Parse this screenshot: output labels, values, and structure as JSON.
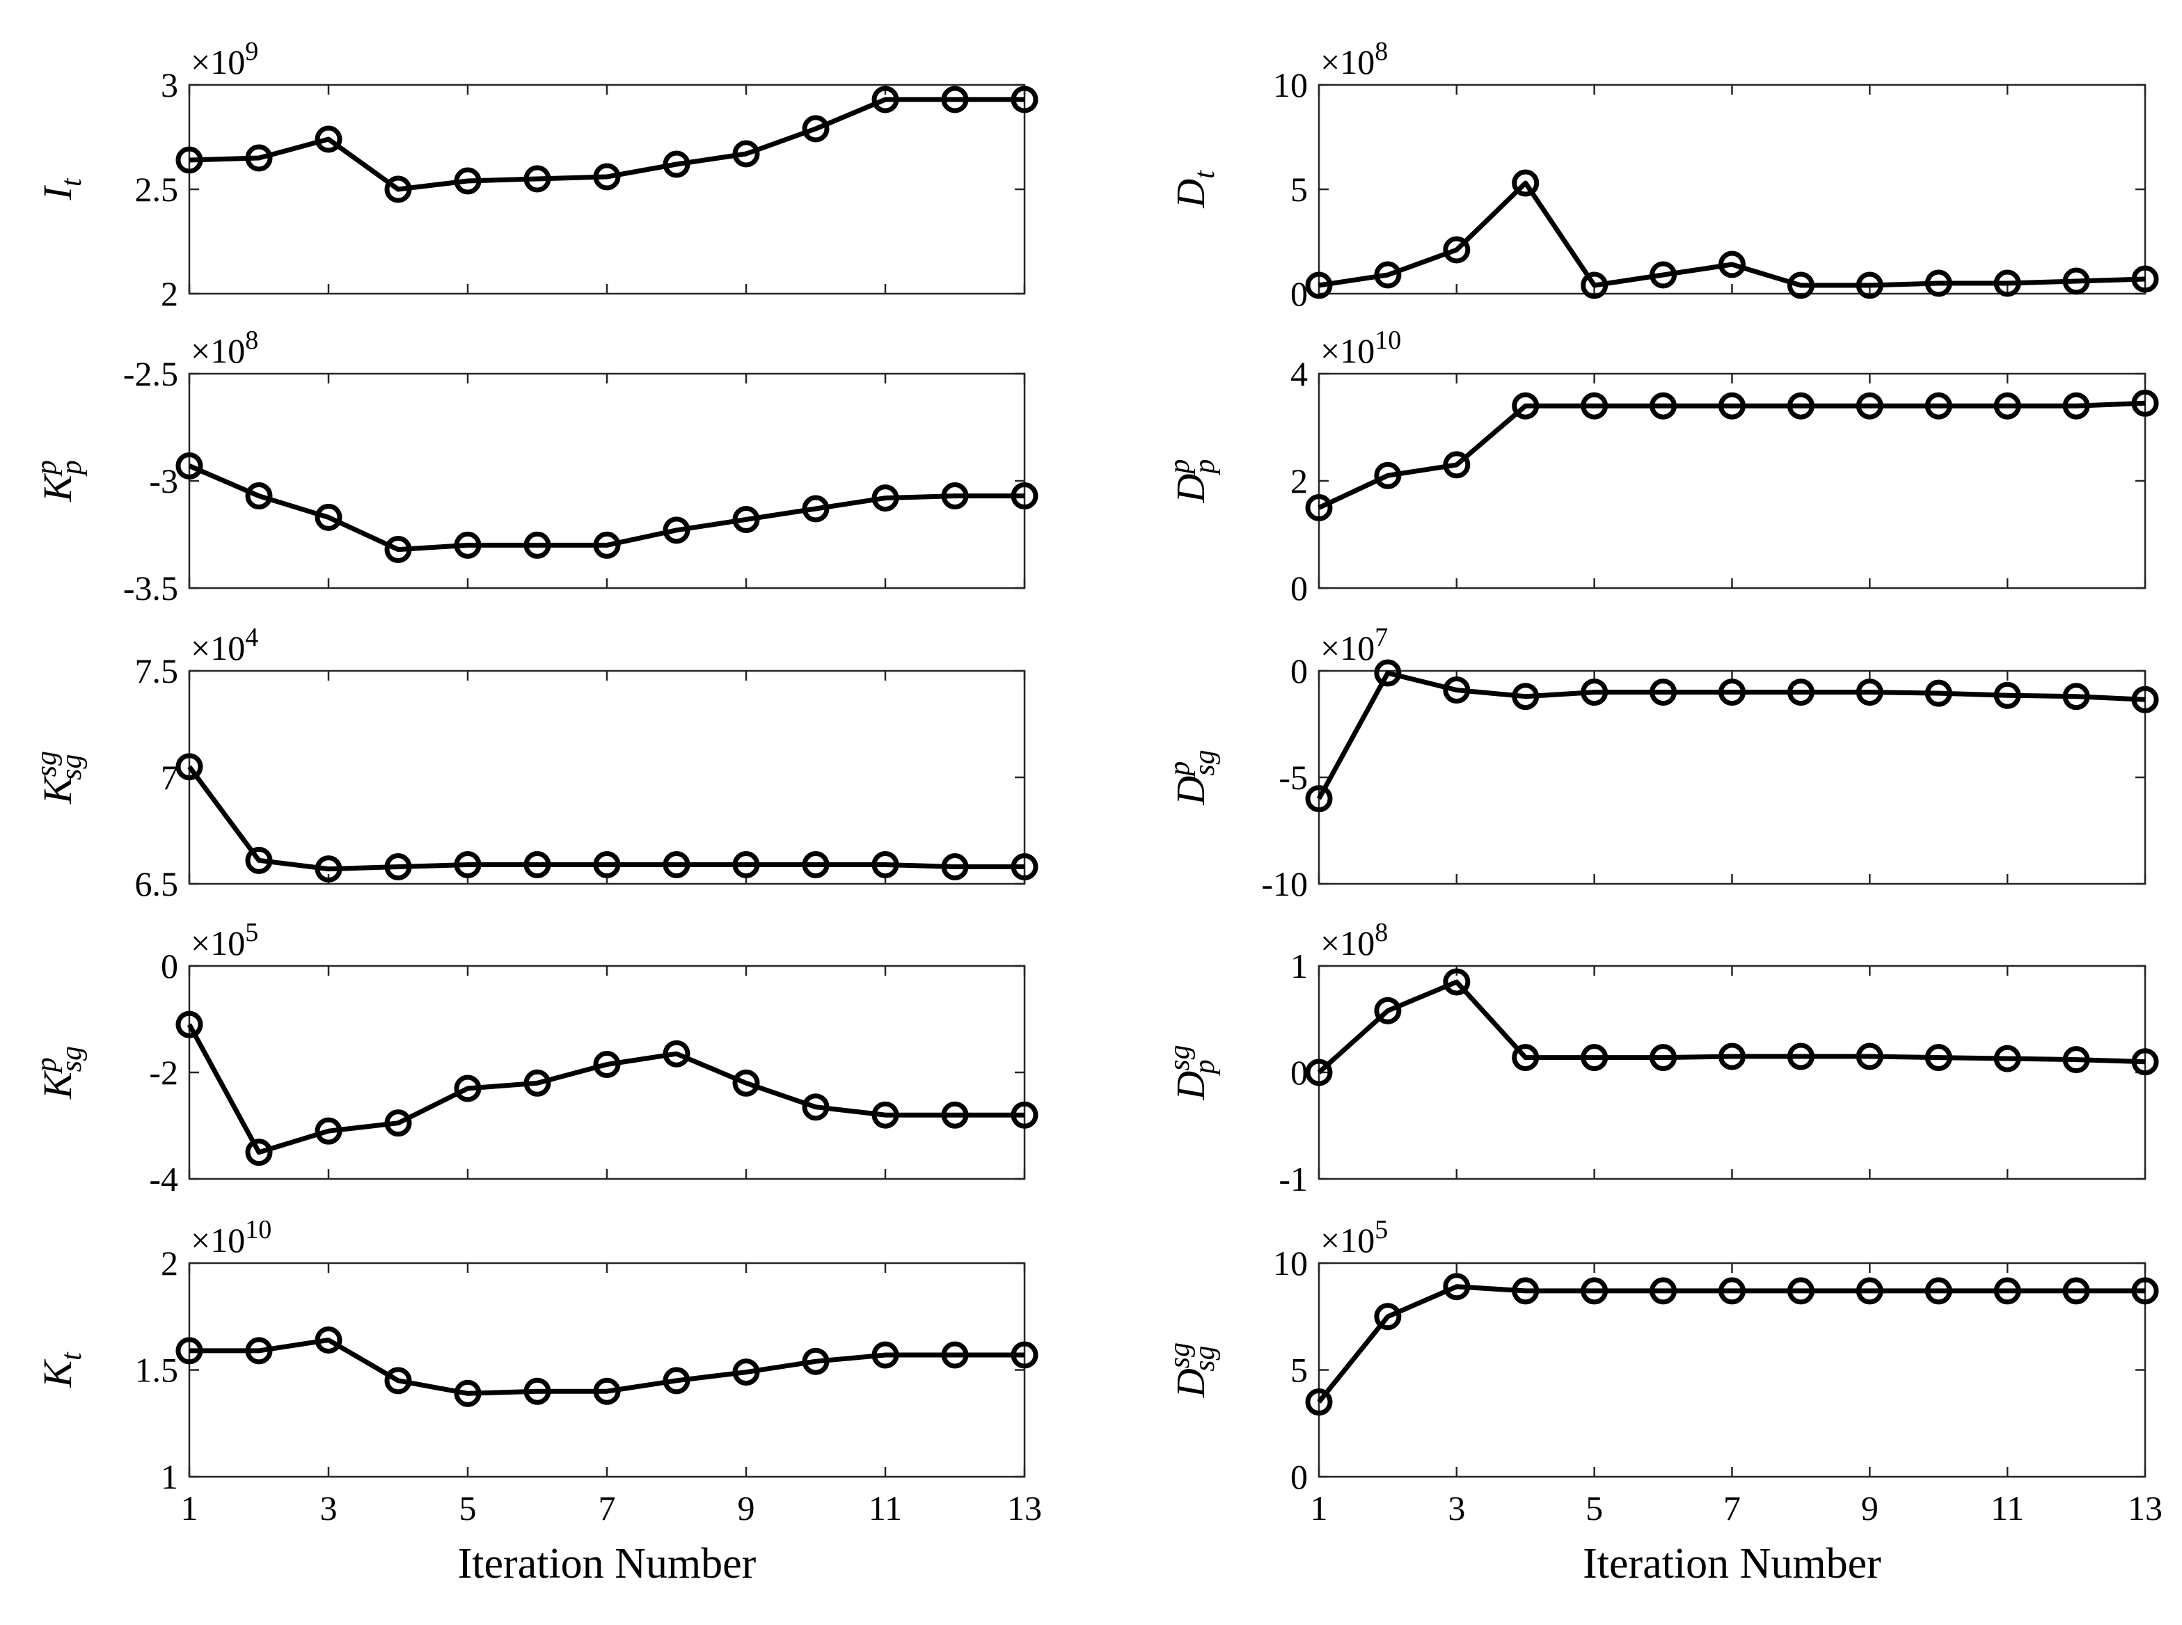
{
  "chart_data": [
    {
      "type": "line",
      "ylabel_base": "I",
      "ylabel_sub": "t",
      "ylabel_sup": "",
      "exponent_text": "×10",
      "exponent_power": "9",
      "x": [
        1,
        2,
        3,
        4,
        5,
        6,
        7,
        8,
        9,
        10,
        11,
        12,
        13
      ],
      "values": [
        2.64,
        2.65,
        2.74,
        2.5,
        2.54,
        2.55,
        2.56,
        2.62,
        2.67,
        2.79,
        2.93,
        2.93,
        2.93
      ],
      "ylim": [
        2,
        3
      ],
      "yticks": [
        2,
        2.5,
        3
      ],
      "ytick_labels": [
        "2",
        "2.5",
        "3"
      ],
      "xlim": [
        1,
        13
      ],
      "xticks": [
        1,
        3,
        5,
        7,
        9,
        11,
        13
      ],
      "xtick_labels": [],
      "xlabel": ""
    },
    {
      "type": "line",
      "ylabel_base": "D",
      "ylabel_sub": "t",
      "ylabel_sup": "",
      "exponent_text": "×10",
      "exponent_power": "8",
      "x": [
        1,
        2,
        3,
        4,
        5,
        6,
        7,
        8,
        9,
        10,
        11,
        12,
        13
      ],
      "values": [
        0.4,
        0.9,
        2.1,
        5.3,
        0.4,
        0.9,
        1.4,
        0.4,
        0.4,
        0.5,
        0.5,
        0.6,
        0.7
      ],
      "ylim": [
        0,
        10
      ],
      "yticks": [
        0,
        5,
        10
      ],
      "ytick_labels": [
        "0",
        "5",
        "10"
      ],
      "xlim": [
        1,
        13
      ],
      "xticks": [
        1,
        3,
        5,
        7,
        9,
        11,
        13
      ],
      "xtick_labels": [],
      "xlabel": ""
    },
    {
      "type": "line",
      "ylabel_base": "K",
      "ylabel_sub": "p",
      "ylabel_sup": "p",
      "exponent_text": "×10",
      "exponent_power": "8",
      "x": [
        1,
        2,
        3,
        4,
        5,
        6,
        7,
        8,
        9,
        10,
        11,
        12,
        13
      ],
      "values": [
        -2.93,
        -3.07,
        -3.17,
        -3.32,
        -3.3,
        -3.3,
        -3.3,
        -3.23,
        -3.18,
        -3.13,
        -3.08,
        -3.07,
        -3.07
      ],
      "ylim": [
        -3.5,
        -2.5
      ],
      "yticks": [
        -3.5,
        -3,
        -2.5
      ],
      "ytick_labels": [
        "-3.5",
        "-3",
        "-2.5"
      ],
      "xlim": [
        1,
        13
      ],
      "xticks": [
        1,
        3,
        5,
        7,
        9,
        11,
        13
      ],
      "xtick_labels": [],
      "xlabel": ""
    },
    {
      "type": "line",
      "ylabel_base": "D",
      "ylabel_sub": "p",
      "ylabel_sup": "p",
      "exponent_text": "×10",
      "exponent_power": "10",
      "x": [
        1,
        2,
        3,
        4,
        5,
        6,
        7,
        8,
        9,
        10,
        11,
        12,
        13
      ],
      "values": [
        1.5,
        2.1,
        2.3,
        3.4,
        3.4,
        3.4,
        3.4,
        3.4,
        3.4,
        3.4,
        3.4,
        3.4,
        3.45
      ],
      "ylim": [
        0,
        4
      ],
      "yticks": [
        0,
        2,
        4
      ],
      "ytick_labels": [
        "0",
        "2",
        "4"
      ],
      "xlim": [
        1,
        13
      ],
      "xticks": [
        1,
        3,
        5,
        7,
        9,
        11,
        13
      ],
      "xtick_labels": [],
      "xlabel": ""
    },
    {
      "type": "line",
      "ylabel_base": "K",
      "ylabel_sub": "sg",
      "ylabel_sup": "sg",
      "exponent_text": "×10",
      "exponent_power": "4",
      "x": [
        1,
        2,
        3,
        4,
        5,
        6,
        7,
        8,
        9,
        10,
        11,
        12,
        13
      ],
      "values": [
        7.05,
        6.61,
        6.57,
        6.58,
        6.59,
        6.59,
        6.59,
        6.59,
        6.59,
        6.59,
        6.59,
        6.58,
        6.58
      ],
      "ylim": [
        6.5,
        7.5
      ],
      "yticks": [
        6.5,
        7,
        7.5
      ],
      "ytick_labels": [
        "6.5",
        "7",
        "7.5"
      ],
      "xlim": [
        1,
        13
      ],
      "xticks": [
        1,
        3,
        5,
        7,
        9,
        11,
        13
      ],
      "xtick_labels": [],
      "xlabel": ""
    },
    {
      "type": "line",
      "ylabel_base": "D",
      "ylabel_sub": "sg",
      "ylabel_sup": "p",
      "exponent_text": "×10",
      "exponent_power": "7",
      "x": [
        1,
        2,
        3,
        4,
        5,
        6,
        7,
        8,
        9,
        10,
        11,
        12,
        13
      ],
      "values": [
        -6.0,
        -0.1,
        -0.9,
        -1.2,
        -1.0,
        -1.0,
        -1.0,
        -1.0,
        -1.0,
        -1.05,
        -1.15,
        -1.2,
        -1.35
      ],
      "ylim": [
        -10,
        0
      ],
      "yticks": [
        -10,
        -5,
        0
      ],
      "ytick_labels": [
        "-10",
        "-5",
        "0"
      ],
      "xlim": [
        1,
        13
      ],
      "xticks": [
        1,
        3,
        5,
        7,
        9,
        11,
        13
      ],
      "xtick_labels": [],
      "xlabel": ""
    },
    {
      "type": "line",
      "ylabel_base": "K",
      "ylabel_sub": "sg",
      "ylabel_sup": "p",
      "exponent_text": "×10",
      "exponent_power": "5",
      "x": [
        1,
        2,
        3,
        4,
        5,
        6,
        7,
        8,
        9,
        10,
        11,
        12,
        13
      ],
      "values": [
        -1.1,
        -3.5,
        -3.1,
        -2.95,
        -2.3,
        -2.2,
        -1.85,
        -1.65,
        -2.2,
        -2.65,
        -2.8,
        -2.8,
        -2.8
      ],
      "ylim": [
        -4,
        0
      ],
      "yticks": [
        -4,
        -2,
        0
      ],
      "ytick_labels": [
        "-4",
        "-2",
        "0"
      ],
      "xlim": [
        1,
        13
      ],
      "xticks": [
        1,
        3,
        5,
        7,
        9,
        11,
        13
      ],
      "xtick_labels": [],
      "xlabel": ""
    },
    {
      "type": "line",
      "ylabel_base": "D",
      "ylabel_sub": "p",
      "ylabel_sup": "sg",
      "exponent_text": "×10",
      "exponent_power": "8",
      "x": [
        1,
        2,
        3,
        4,
        5,
        6,
        7,
        8,
        9,
        10,
        11,
        12,
        13
      ],
      "values": [
        0.0,
        0.58,
        0.85,
        0.14,
        0.14,
        0.14,
        0.15,
        0.15,
        0.15,
        0.14,
        0.13,
        0.12,
        0.1
      ],
      "ylim": [
        -1,
        1
      ],
      "yticks": [
        -1,
        0,
        1
      ],
      "ytick_labels": [
        "-1",
        "0",
        "1"
      ],
      "xlim": [
        1,
        13
      ],
      "xticks": [
        1,
        3,
        5,
        7,
        9,
        11,
        13
      ],
      "xtick_labels": [],
      "xlabel": ""
    },
    {
      "type": "line",
      "ylabel_base": "K",
      "ylabel_sub": "t",
      "ylabel_sup": "",
      "exponent_text": "×10",
      "exponent_power": "10",
      "x": [
        1,
        2,
        3,
        4,
        5,
        6,
        7,
        8,
        9,
        10,
        11,
        12,
        13
      ],
      "values": [
        1.59,
        1.59,
        1.64,
        1.45,
        1.39,
        1.4,
        1.4,
        1.45,
        1.49,
        1.54,
        1.57,
        1.57,
        1.57
      ],
      "ylim": [
        1,
        2
      ],
      "yticks": [
        1,
        1.5,
        2
      ],
      "ytick_labels": [
        "1",
        "1.5",
        "2"
      ],
      "xlim": [
        1,
        13
      ],
      "xticks": [
        1,
        3,
        5,
        7,
        9,
        11,
        13
      ],
      "xtick_labels": [
        "1",
        "3",
        "5",
        "7",
        "9",
        "11",
        "13"
      ],
      "xlabel": "Iteration Number"
    },
    {
      "type": "line",
      "ylabel_base": "D",
      "ylabel_sub": "sg",
      "ylabel_sup": "sg",
      "exponent_text": "×10",
      "exponent_power": "5",
      "x": [
        1,
        2,
        3,
        4,
        5,
        6,
        7,
        8,
        9,
        10,
        11,
        12,
        13
      ],
      "values": [
        3.5,
        7.5,
        8.9,
        8.7,
        8.7,
        8.7,
        8.7,
        8.7,
        8.7,
        8.7,
        8.7,
        8.7,
        8.7
      ],
      "ylim": [
        0,
        10
      ],
      "yticks": [
        0,
        5,
        10
      ],
      "ytick_labels": [
        "0",
        "5",
        "10"
      ],
      "xlim": [
        1,
        13
      ],
      "xticks": [
        1,
        3,
        5,
        7,
        9,
        11,
        13
      ],
      "xtick_labels": [
        "1",
        "3",
        "5",
        "7",
        "9",
        "11",
        "13"
      ],
      "xlabel": "Iteration Number"
    }
  ]
}
